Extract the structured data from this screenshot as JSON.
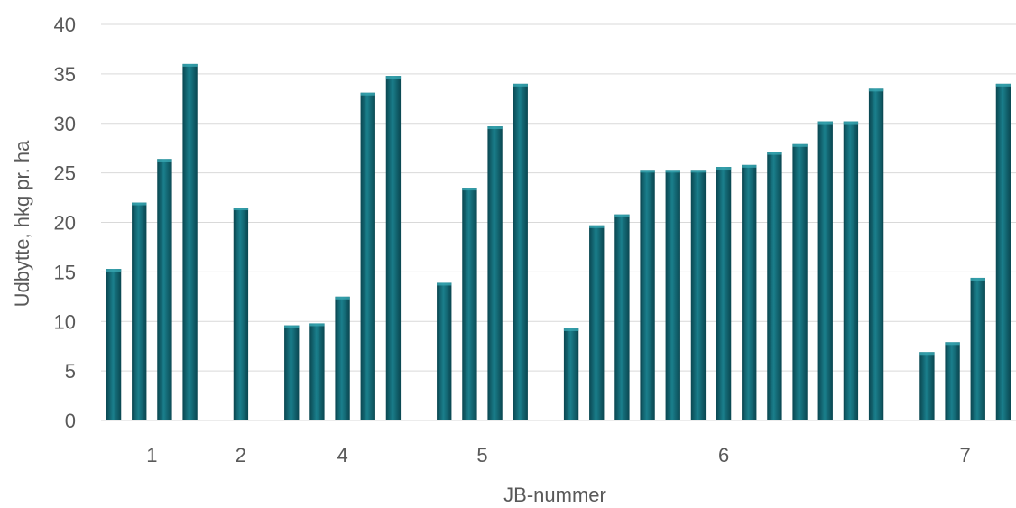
{
  "chart_data": {
    "type": "bar",
    "title": "",
    "xlabel": "JB-nummer",
    "ylabel": "Udbytte, hkg pr. ha",
    "ylim": [
      0,
      40
    ],
    "yticks": [
      "0",
      "5",
      "10",
      "15",
      "20",
      "25",
      "30",
      "35",
      "40"
    ],
    "grid": "horizontal",
    "legend": "none",
    "bar_color": "#0f5f6b",
    "groups": [
      {
        "label": "1",
        "values": [
          15.3,
          22.0,
          26.4,
          36.0
        ]
      },
      {
        "label": "2",
        "values": [
          21.5
        ]
      },
      {
        "label": "4",
        "values": [
          9.6,
          9.8,
          12.5,
          33.1,
          34.8
        ]
      },
      {
        "label": "5",
        "values": [
          13.9,
          23.5,
          29.7,
          34.0
        ]
      },
      {
        "label": "6",
        "values": [
          9.3,
          19.7,
          20.8,
          25.3,
          25.3,
          25.3,
          25.6,
          25.8,
          27.1,
          27.9,
          30.2,
          30.2,
          33.5
        ]
      },
      {
        "label": "7",
        "values": [
          6.9,
          7.9,
          14.4,
          34.0
        ]
      }
    ]
  }
}
